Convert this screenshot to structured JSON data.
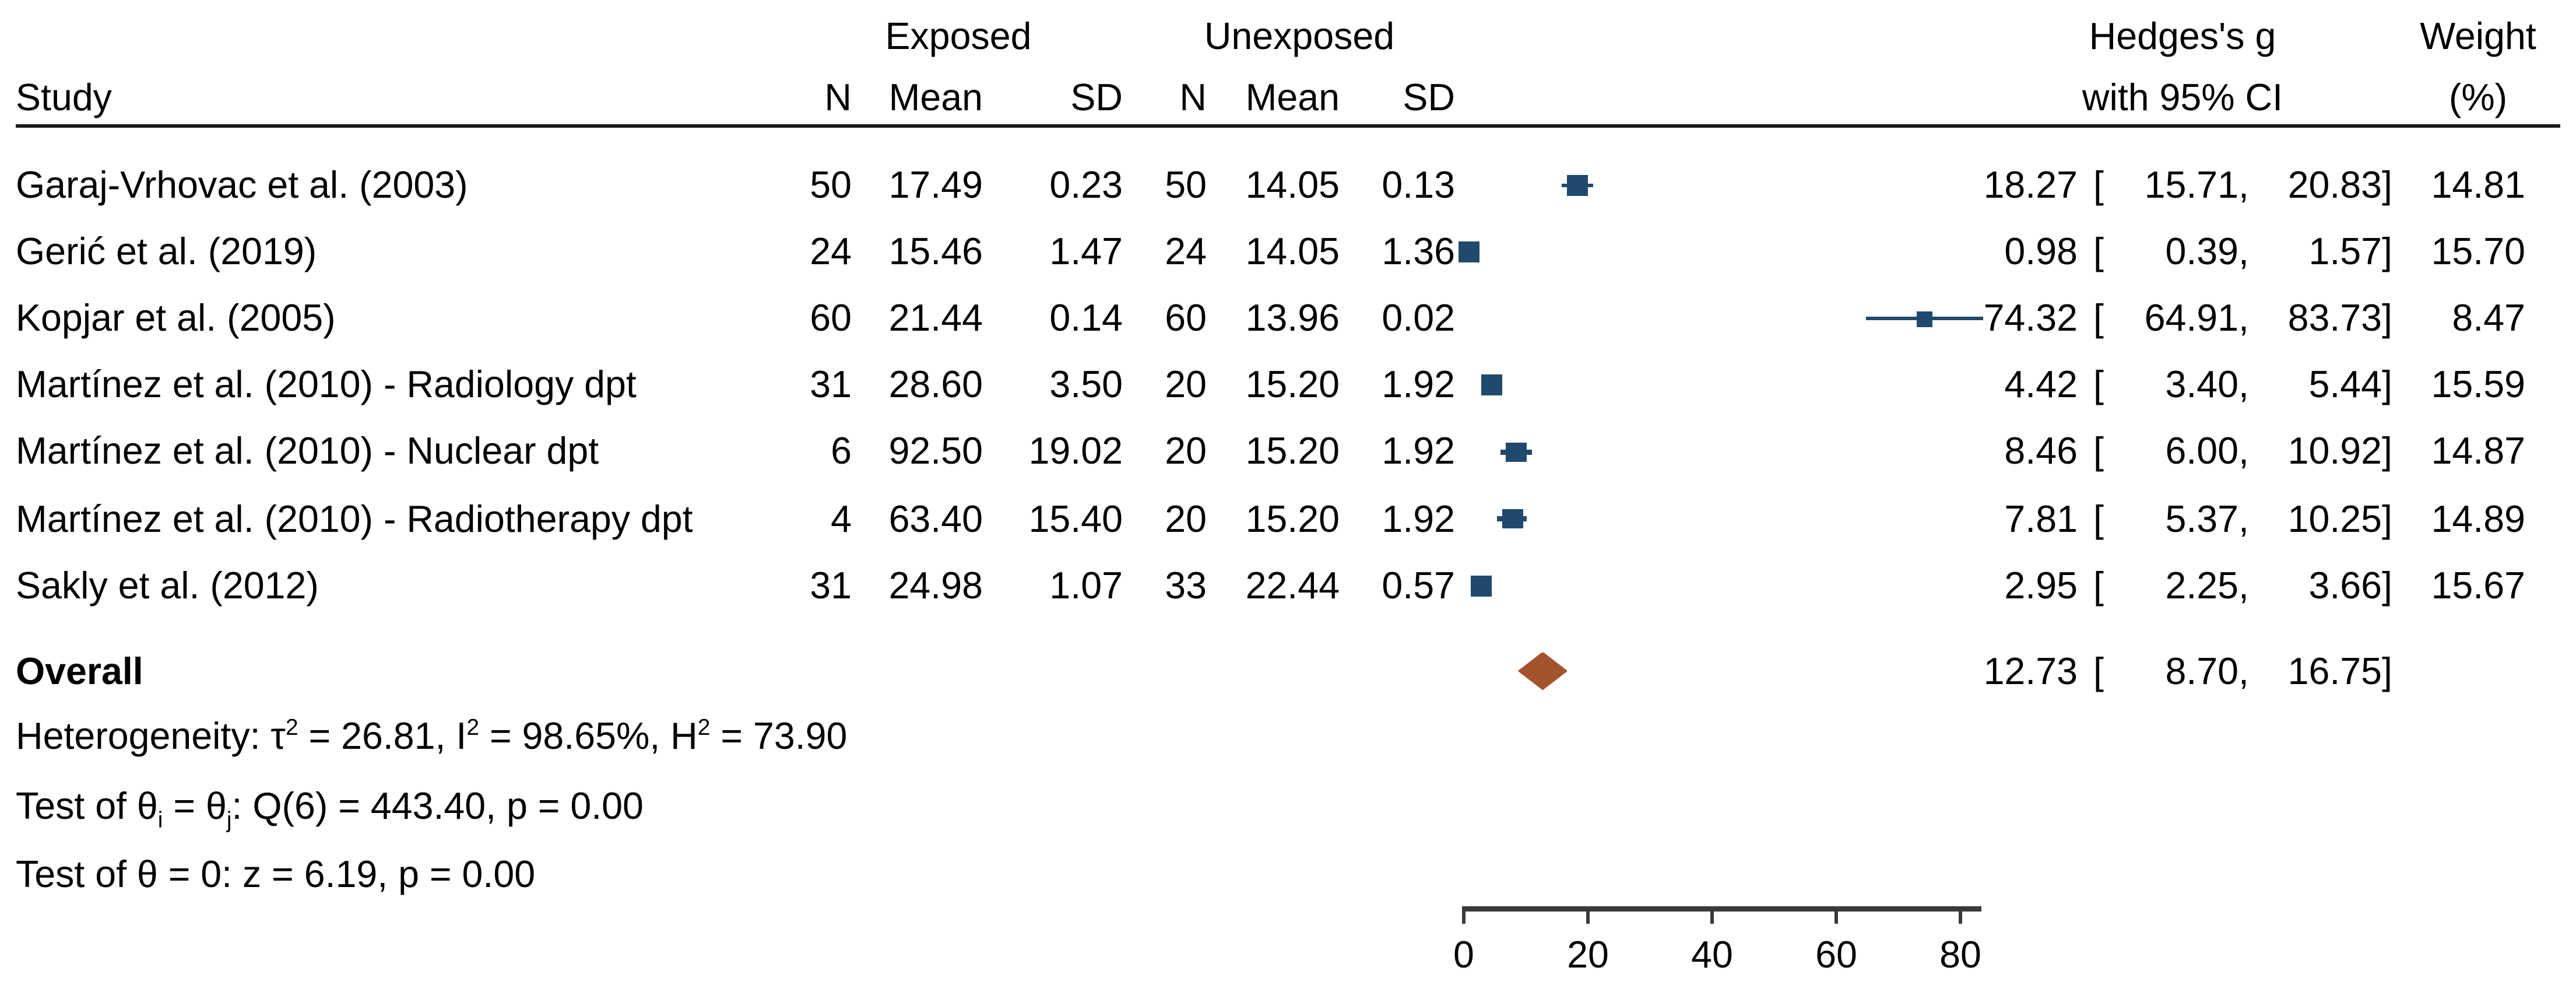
{
  "header": {
    "study_col": "Study",
    "group_exposed": "Exposed",
    "group_unexposed": "Unexposed",
    "col_n": "N",
    "col_mean": "Mean",
    "col_sd": "SD",
    "effect_line1": "Hedges's g",
    "effect_line2": "with 95% CI",
    "weight_line1": "Weight",
    "weight_line2": "(%)"
  },
  "fmt": {
    "ci_open": "[",
    "ci_sep": ",",
    "ci_close": "]"
  },
  "table": {
    "rows": [
      {
        "name": "Garaj-Vrhovac et al. (2003)",
        "n1": "50",
        "mean1": "17.49",
        "sd1": "0.23",
        "n2": "50",
        "mean2": "14.05",
        "sd2": "0.13",
        "est": "18.27",
        "lo": "15.71",
        "hi": "20.83",
        "weight": "14.81"
      },
      {
        "name": "Gerić et al. (2019)",
        "n1": "24",
        "mean1": "15.46",
        "sd1": "1.47",
        "n2": "24",
        "mean2": "14.05",
        "sd2": "1.36",
        "est": "0.98",
        "lo": "0.39",
        "hi": "1.57",
        "weight": "15.70"
      },
      {
        "name": "Kopjar et al. (2005)",
        "n1": "60",
        "mean1": "21.44",
        "sd1": "0.14",
        "n2": "60",
        "mean2": "13.96",
        "sd2": "0.02",
        "est": "74.32",
        "lo": "64.91",
        "hi": "83.73",
        "weight": "8.47"
      },
      {
        "name": "Martínez et al. (2010) - Radiology dpt",
        "n1": "31",
        "mean1": "28.60",
        "sd1": "3.50",
        "n2": "20",
        "mean2": "15.20",
        "sd2": "1.92",
        "est": "4.42",
        "lo": "3.40",
        "hi": "5.44",
        "weight": "15.59"
      },
      {
        "name": "Martínez et al. (2010) - Nuclear dpt",
        "n1": "6",
        "mean1": "92.50",
        "sd1": "19.02",
        "n2": "20",
        "mean2": "15.20",
        "sd2": "1.92",
        "est": "8.46",
        "lo": "6.00",
        "hi": "10.92",
        "weight": "14.87"
      },
      {
        "name": "Martínez et al. (2010) - Radiotherapy dpt",
        "n1": "4",
        "mean1": "63.40",
        "sd1": "15.40",
        "n2": "20",
        "mean2": "15.20",
        "sd2": "1.92",
        "est": "7.81",
        "lo": "5.37",
        "hi": "10.25",
        "weight": "14.89"
      },
      {
        "name": "Sakly et al. (2012)",
        "n1": "31",
        "mean1": "24.98",
        "sd1": "1.07",
        "n2": "33",
        "mean2": "22.44",
        "sd2": "0.57",
        "est": "2.95",
        "lo": "2.25",
        "hi": "3.66",
        "weight": "15.67"
      }
    ],
    "overall": {
      "label": "Overall",
      "est": "12.73",
      "lo": "8.70",
      "hi": "16.75"
    }
  },
  "stats": {
    "heterogeneity": {
      "pre": "Heterogeneity: τ",
      "sup1": "2",
      "mid1": " = 26.81, I",
      "sup2": "2",
      "mid2": " = 98.65%, H",
      "sup3": "2",
      "end": " = 73.90"
    },
    "test_homogeneity": {
      "pre": "Test of θ",
      "sub1": "i",
      "mid1": " = θ",
      "sub2": "j",
      "end": ": Q(6) = 443.40, p = 0.00"
    },
    "test_zero": "Test of θ = 0: z = 6.19, p = 0.00"
  },
  "axis": {
    "tick_labels": [
      "0",
      "20",
      "40",
      "60",
      "80"
    ]
  },
  "colors": {
    "marker_navy": "#1f4a6d",
    "diamond_sienna": "#a3532c",
    "axis_gray": "#3a3a3a",
    "rule_black": "#1a1a1a"
  },
  "chart_data": {
    "type": "forest",
    "title": "",
    "xlabel": "",
    "effect_measure": "Hedges's g with 95% CI",
    "x_ticks": [
      0,
      20,
      40,
      60,
      80
    ],
    "x_tick_labels": [
      "0",
      "20",
      "40",
      "60",
      "80"
    ],
    "x_axis_range": [
      0,
      83.4
    ],
    "grid": false,
    "rows": [
      {
        "study": "Garaj-Vrhovac et al. (2003)",
        "n_exposed": 50,
        "mean_exposed": 17.49,
        "sd_exposed": 0.23,
        "n_unexposed": 50,
        "mean_unexposed": 14.05,
        "sd_unexposed": 0.13,
        "est": 18.27,
        "lo": 15.71,
        "hi": 20.83,
        "weight": 14.81
      },
      {
        "study": "Gerić et al. (2019)",
        "n_exposed": 24,
        "mean_exposed": 15.46,
        "sd_exposed": 1.47,
        "n_unexposed": 24,
        "mean_unexposed": 14.05,
        "sd_unexposed": 1.36,
        "est": 0.98,
        "lo": 0.39,
        "hi": 1.57,
        "weight": 15.7
      },
      {
        "study": "Kopjar et al. (2005)",
        "n_exposed": 60,
        "mean_exposed": 21.44,
        "sd_exposed": 0.14,
        "n_unexposed": 60,
        "mean_unexposed": 13.96,
        "sd_unexposed": 0.02,
        "est": 74.32,
        "lo": 64.91,
        "hi": 83.73,
        "weight": 8.47
      },
      {
        "study": "Martínez et al. (2010) - Radiology dpt",
        "n_exposed": 31,
        "mean_exposed": 28.6,
        "sd_exposed": 3.5,
        "n_unexposed": 20,
        "mean_unexposed": 15.2,
        "sd_unexposed": 1.92,
        "est": 4.42,
        "lo": 3.4,
        "hi": 5.44,
        "weight": 15.59
      },
      {
        "study": "Martínez et al. (2010) - Nuclear dpt",
        "n_exposed": 6,
        "mean_exposed": 92.5,
        "sd_exposed": 19.02,
        "n_unexposed": 20,
        "mean_unexposed": 15.2,
        "sd_unexposed": 1.92,
        "est": 8.46,
        "lo": 6.0,
        "hi": 10.92,
        "weight": 14.87
      },
      {
        "study": "Martínez et al. (2010) - Radiotherapy dpt",
        "n_exposed": 4,
        "mean_exposed": 63.4,
        "sd_exposed": 15.4,
        "n_unexposed": 20,
        "mean_unexposed": 15.2,
        "sd_unexposed": 1.92,
        "est": 7.81,
        "lo": 5.37,
        "hi": 10.25,
        "weight": 14.89
      },
      {
        "study": "Sakly et al. (2012)",
        "n_exposed": 31,
        "mean_exposed": 24.98,
        "sd_exposed": 1.07,
        "n_unexposed": 33,
        "mean_unexposed": 22.44,
        "sd_unexposed": 0.57,
        "est": 2.95,
        "lo": 2.25,
        "hi": 3.66,
        "weight": 15.67
      }
    ],
    "overall": {
      "est": 12.73,
      "lo": 8.7,
      "hi": 16.75
    }
  }
}
